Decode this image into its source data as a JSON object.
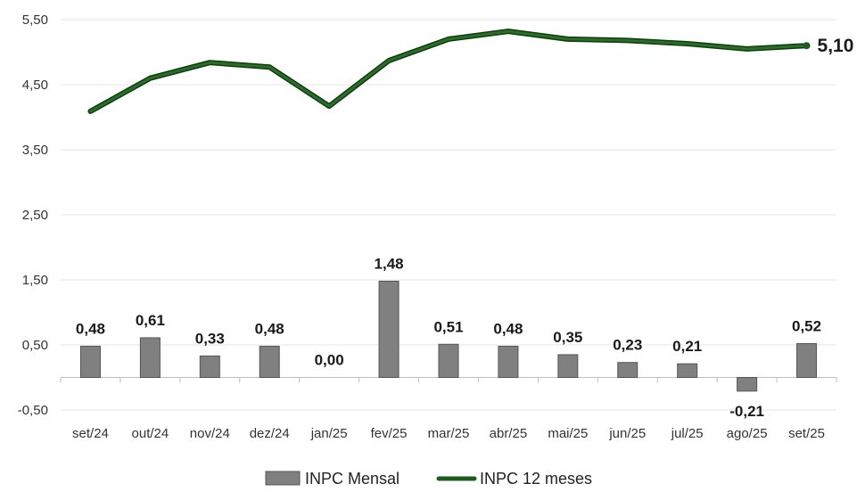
{
  "chart_data": {
    "type": "bar",
    "categories": [
      "set/24",
      "out/24",
      "nov/24",
      "dez/24",
      "jan/25",
      "fev/25",
      "mar/25",
      "abr/25",
      "mai/25",
      "jun/25",
      "jul/25",
      "ago/25",
      "set/25"
    ],
    "series": [
      {
        "name": "INPC Mensal",
        "type": "bar",
        "color": "#808080",
        "values": [
          0.48,
          0.61,
          0.33,
          0.48,
          0.0,
          1.48,
          0.51,
          0.48,
          0.35,
          0.23,
          0.21,
          -0.21,
          0.52
        ],
        "labels": [
          "0,48",
          "0,61",
          "0,33",
          "0,48",
          "0,00",
          "1,48",
          "0,51",
          "0,48",
          "0,35",
          "0,23",
          "0,21",
          "-0,21",
          "0,52"
        ]
      },
      {
        "name": "INPC 12 meses",
        "type": "line",
        "color": "#1e5a1e",
        "values": [
          4.09,
          4.6,
          4.84,
          4.77,
          4.17,
          4.87,
          5.2,
          5.32,
          5.2,
          5.18,
          5.13,
          5.05,
          5.1
        ],
        "end_label": "5,10"
      }
    ],
    "yticks": [
      -0.5,
      0.5,
      1.5,
      2.5,
      3.5,
      4.5,
      5.5
    ],
    "ytick_labels": [
      "-0,50",
      "0,50",
      "1,50",
      "2,50",
      "3,50",
      "4,50",
      "5,50"
    ],
    "ylim": [
      -0.5,
      5.5
    ],
    "grid": true,
    "legend": "bottom-center",
    "title": "",
    "xlabel": "",
    "ylabel": ""
  }
}
